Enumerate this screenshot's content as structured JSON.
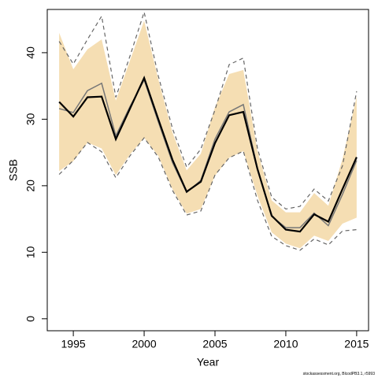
{
  "chart_data": {
    "type": "line",
    "x_label": "Year",
    "y_label": "SSB",
    "footnote": "stockassessment.org, BlcodPB3.1, r5993",
    "x": [
      1994,
      1995,
      1996,
      1997,
      1998,
      1999,
      2000,
      2001,
      2002,
      2003,
      2004,
      2005,
      2006,
      2007,
      2008,
      2009,
      2010,
      2011,
      2012,
      2013,
      2014,
      2015
    ],
    "xlim": [
      1993.16,
      2015.84
    ],
    "xticks": [
      1995,
      2000,
      2005,
      2010,
      2015
    ],
    "ylim": [
      -1.8,
      46.5
    ],
    "yticks": [
      0,
      10,
      20,
      30,
      40
    ],
    "band": {
      "color": "#f5deb3",
      "upper": [
        43,
        37.5,
        40.5,
        42,
        32.8,
        38.8,
        44.8,
        36,
        28,
        22.3,
        24.8,
        31.8,
        36.8,
        37.4,
        25.2,
        17.8,
        16,
        16,
        18.9,
        17,
        24,
        33.4
      ],
      "lower": [
        22.2,
        23.7,
        26.5,
        25.6,
        21.6,
        24.7,
        27.2,
        24.5,
        19.5,
        15.8,
        16.5,
        21.5,
        24.2,
        25.2,
        18.5,
        13,
        11.3,
        10.6,
        12.5,
        11.7,
        14.3,
        15.2
      ]
    },
    "series": [
      {
        "color": "#666666",
        "dash": true,
        "width": 1.2,
        "values": [
          41.7,
          38.3,
          42,
          45.5,
          33.3,
          39.5,
          46.1,
          36.5,
          28.6,
          22.8,
          25.5,
          31.4,
          38.2,
          39.2,
          25.6,
          18.3,
          16.5,
          16.9,
          19.5,
          17.7,
          23,
          34.2
        ]
      },
      {
        "color": "#666666",
        "dash": true,
        "width": 1.2,
        "values": [
          21.7,
          23.8,
          26.5,
          25.1,
          21.2,
          24.5,
          27.2,
          24.3,
          19.3,
          15.6,
          16.2,
          21.6,
          24.2,
          25.2,
          17.8,
          12.4,
          11,
          10.3,
          12,
          11.1,
          13.2,
          13.4
        ]
      },
      {
        "color": "#777777",
        "dash": false,
        "width": 1.5,
        "values": [
          31.6,
          31,
          34.3,
          35.4,
          27.5,
          31.9,
          35.9,
          29.6,
          23.5,
          19,
          20.8,
          27,
          31.1,
          32.2,
          22.6,
          15.4,
          13.7,
          13.7,
          15.9,
          14,
          18.7,
          23.8
        ]
      },
      {
        "color": "#000000",
        "dash": false,
        "width": 2.2,
        "values": [
          32.6,
          30.4,
          33.3,
          33.4,
          27,
          31.6,
          36.2,
          30,
          23.9,
          19.1,
          20.6,
          26.4,
          30.6,
          31.1,
          22.5,
          15.5,
          13.4,
          13.1,
          15.7,
          14.6,
          19.5,
          24.3
        ]
      }
    ]
  }
}
